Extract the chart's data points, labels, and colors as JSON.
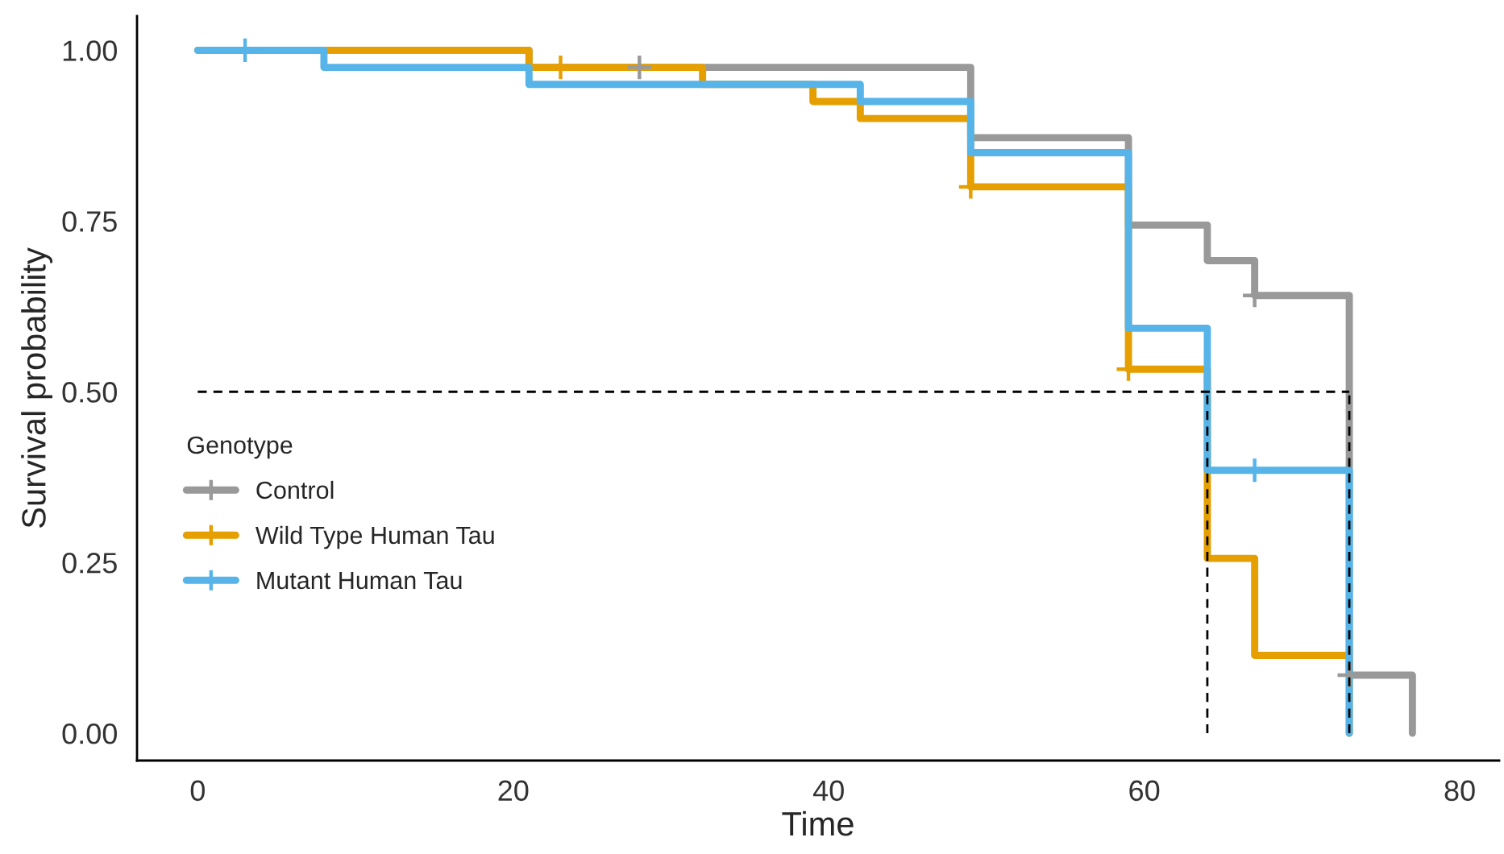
{
  "chart_data": {
    "type": "step",
    "xlabel": "Time",
    "ylabel": "Survival probability",
    "legend_title": "Genotype",
    "legend": "left",
    "grid": false,
    "xlim": [
      -3.85,
      82.5
    ],
    "xticks": [
      0,
      20,
      40,
      60,
      80
    ],
    "ylim": [
      -0.04,
      1.05
    ],
    "yticks": [
      {
        "value": 0,
        "label": "0.00"
      },
      {
        "value": 0.25,
        "label": "0.25"
      },
      {
        "value": 0.5,
        "label": "0.50"
      },
      {
        "value": 0.75,
        "label": "0.75"
      },
      {
        "value": 1,
        "label": "1.00"
      }
    ],
    "series": [
      {
        "name": "Control",
        "color": "#999999",
        "x": [
          0,
          21,
          49,
          59,
          64,
          67,
          73,
          77
        ],
        "values": [
          1,
          0.975,
          0.872,
          0.744,
          0.692,
          0.641,
          0.085,
          0
        ]
      },
      {
        "name": "Wild Type Human Tau",
        "color": "#e69f00",
        "x": [
          0,
          21,
          32,
          39,
          42,
          49,
          59,
          64,
          67,
          73
        ],
        "values": [
          1,
          0.975,
          0.95,
          0.925,
          0.9,
          0.8,
          0.533,
          0.256,
          0.114,
          0
        ]
      },
      {
        "name": "Mutant Human Tau",
        "color": "#56b4e9",
        "x": [
          0,
          8,
          21,
          42,
          49,
          59,
          64,
          73
        ],
        "values": [
          1,
          0.975,
          0.95,
          0.925,
          0.85,
          0.593,
          0.385,
          0
        ]
      },
      {
        "type": "scatter",
        "marker": "cross",
        "color": "#999999",
        "x": [
          28,
          67,
          73
        ],
        "values": [
          0.975,
          0.641,
          0.085
        ]
      },
      {
        "type": "scatter",
        "marker": "cross",
        "color": "#e69f00",
        "x": [
          23,
          49,
          59
        ],
        "values": [
          0.975,
          0.8,
          0.533
        ]
      },
      {
        "type": "scatter",
        "marker": "cross",
        "color": "#56b4e9",
        "x": [
          3,
          67
        ],
        "values": [
          1,
          0.385
        ]
      },
      {
        "type": "line",
        "line_style": "dashed",
        "color": "#000000",
        "x": [
          0,
          73
        ],
        "values": [
          0.5,
          0.5
        ]
      },
      {
        "type": "line",
        "line_style": "dashed",
        "color": "#000000",
        "x": [
          64,
          64
        ],
        "values": [
          0,
          0.5
        ]
      },
      {
        "type": "line",
        "line_style": "dashed",
        "color": "#000000",
        "x": [
          73,
          73
        ],
        "values": [
          0,
          0.5
        ]
      }
    ]
  }
}
